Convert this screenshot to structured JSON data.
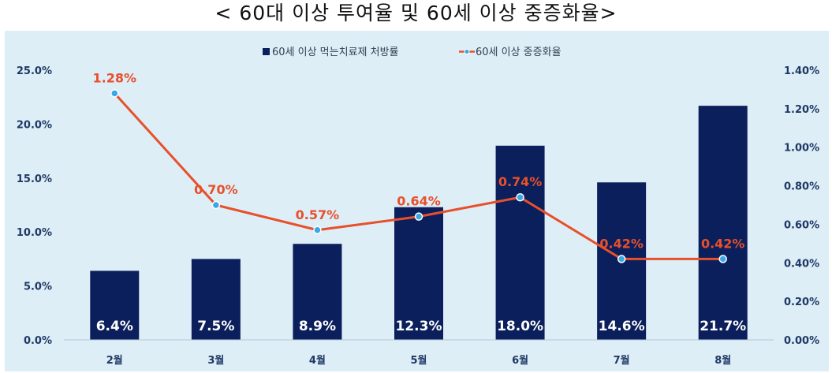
{
  "title": "< 60대 이상 투여율 및 60세 이상 중증화율>",
  "colors": {
    "bar": "#0b1f5c",
    "line": "#e8502a",
    "marker": "#38a8e8",
    "panel": "#ddeef7"
  },
  "chart_data": {
    "type": "bar",
    "categories": [
      "2월",
      "3월",
      "4월",
      "5월",
      "6월",
      "7월",
      "8월"
    ],
    "series": [
      {
        "name": "60세 이상 먹는치료제 처방률",
        "type": "bar",
        "axis": "left",
        "values": [
          6.4,
          7.5,
          8.9,
          12.3,
          18.0,
          14.6,
          21.7
        ],
        "labels": [
          "6.4%",
          "7.5%",
          "8.9%",
          "12.3%",
          "18.0%",
          "14.6%",
          "21.7%"
        ]
      },
      {
        "name": "60세 이상 중증화율",
        "type": "line",
        "axis": "right",
        "values": [
          1.28,
          0.7,
          0.57,
          0.64,
          0.74,
          0.42,
          0.42
        ],
        "labels": [
          "1.28%",
          "0.70%",
          "0.57%",
          "0.64%",
          "0.74%",
          "0.42%",
          "0.42%"
        ]
      }
    ],
    "y_left": {
      "ylim": [
        0,
        25
      ],
      "ticks": [
        0,
        5,
        10,
        15,
        20,
        25
      ],
      "tick_labels": [
        "0.0%",
        "5.0%",
        "10.0%",
        "15.0%",
        "20.0%",
        "25.0%"
      ]
    },
    "y_right": {
      "ylim": [
        0,
        1.4
      ],
      "ticks": [
        0,
        0.2,
        0.4,
        0.6,
        0.8,
        1.0,
        1.2,
        1.4
      ],
      "tick_labels": [
        "0.00%",
        "0.20%",
        "0.40%",
        "0.60%",
        "0.80%",
        "1.00%",
        "1.20%",
        "1.40%"
      ]
    },
    "legend_position": "top-center",
    "grid": false
  }
}
